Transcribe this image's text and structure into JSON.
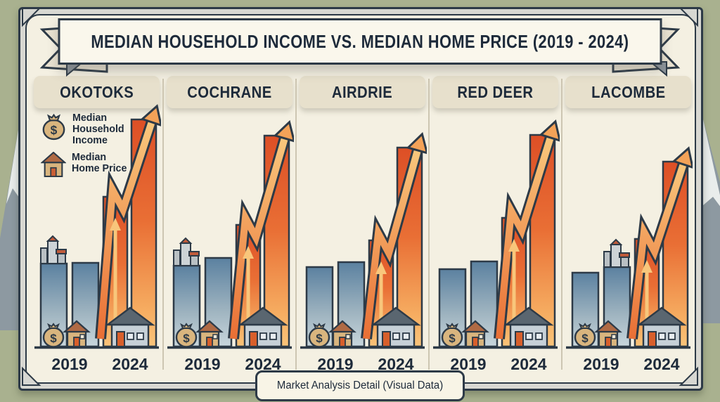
{
  "banner": {
    "title": "MEDIAN HOUSEHOLD INCOME VS. MEDIAN HOME PRICE (2019 - 2024)"
  },
  "legend": {
    "items": [
      {
        "icon": "money-bag-icon",
        "label": "Median Household Income"
      },
      {
        "icon": "house-icon",
        "label": "Median Home Price"
      }
    ]
  },
  "footer": {
    "label": "Market Analysis Detail (Visual Data)"
  },
  "chart_data": {
    "type": "bar",
    "title": "MEDIAN HOUSEHOLD INCOME VS. MEDIAN HOME PRICE (2019 - 2024)",
    "subtitle": "Market Analysis Detail (Visual Data)",
    "years": [
      "2019",
      "2024"
    ],
    "series_legend": [
      "Median Household Income",
      "Median Home Price"
    ],
    "note": "Stylized pictorial infographic; no numeric axis shown. Heights are relative pixel units above the baseline.",
    "panels": [
      {
        "city": "OKOTOKS",
        "bars_2019": [
          118,
          119
        ],
        "bars_2024": [
          225,
          323
        ],
        "landmark_on_bar": 0
      },
      {
        "city": "COCHRANE",
        "bars_2019": [
          115,
          126
        ],
        "bars_2024": [
          185,
          300
        ],
        "landmark_on_bar": 0
      },
      {
        "city": "AIRDRIE",
        "bars_2019": [
          113,
          120
        ],
        "bars_2024": [
          163,
          283
        ],
        "landmark_on_bar": null
      },
      {
        "city": "RED DEER",
        "bars_2019": [
          110,
          121
        ],
        "bars_2024": [
          195,
          301
        ],
        "landmark_on_bar": null
      },
      {
        "city": "LACOMBE",
        "bars_2019": [
          105,
          113
        ],
        "bars_2024": [
          165,
          263
        ],
        "landmark_on_bar": 1
      }
    ]
  },
  "colors": {
    "background": "#a9b18f",
    "card": "#f4f0e2",
    "header_band": "#e7e0cc",
    "navy_text": "#1d2a3a",
    "outline": "#2d3a47",
    "blue_bar_top": "#5b81a0",
    "blue_bar_bottom": "#c8d6dc",
    "orange_bar_top": "#dd4f26",
    "orange_bar_bottom": "#f9c47a",
    "arrow_light": "#f3a258",
    "money_bag_tan": "#d9b57e",
    "small_house_roof": "#b06a44",
    "big_house_body": "#c6d0d7",
    "big_house_roof": "#5a6670",
    "door_orange": "#d85f2b"
  }
}
